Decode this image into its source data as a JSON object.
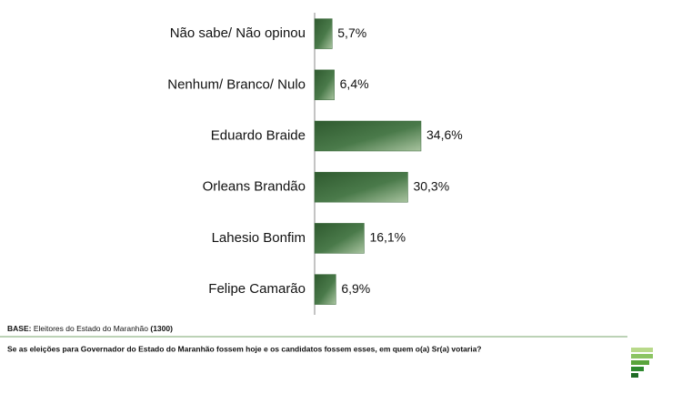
{
  "chart_data": {
    "type": "bar",
    "orientation": "horizontal",
    "categories": [
      "Não sabe/ Não opinou",
      "Nenhum/ Branco/ Nulo",
      "Eduardo Braide",
      "Orleans Brandão",
      "Lahesio Bonfim",
      "Felipe Camarão"
    ],
    "values": [
      5.7,
      6.4,
      34.6,
      30.3,
      16.1,
      6.9
    ],
    "value_labels": [
      "5,7%",
      "6,4%",
      "34,6%",
      "30,3%",
      "16,1%",
      "6,9%"
    ],
    "color": "#3d6b3d"
  },
  "notes": {
    "base_label": "BASE:",
    "base_text": "Eleitores do Estado do Maranhão",
    "base_n": "(1300)",
    "question": "Se as eleições para Governador do Estado do Maranhão fossem hoje e os candidatos fossem esses, em quem o(a) Sr(a) votaria?"
  }
}
